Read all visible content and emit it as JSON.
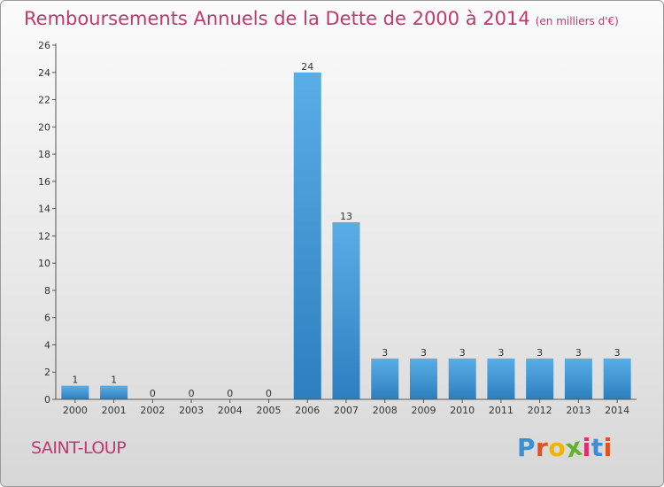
{
  "title": "Remboursements Annuels de la Dette de 2000 à 2014",
  "unit": "(en milliers d'€)",
  "commune": "SAINT-LOUP",
  "logo_text": "Proxiti",
  "colors": {
    "title": "#c2386b",
    "bar_top": "#5aaee6",
    "bar_bottom": "#2c7fbf",
    "logo": [
      "#3b8fd6",
      "#e0531f",
      "#f0b400",
      "#62b22f",
      "#d6336c",
      "#3b8fd6",
      "#e0531f"
    ]
  },
  "chart_data": {
    "type": "bar",
    "categories": [
      "2000",
      "2001",
      "2002",
      "2003",
      "2004",
      "2005",
      "2006",
      "2007",
      "2008",
      "2009",
      "2010",
      "2011",
      "2012",
      "2013",
      "2014"
    ],
    "values": [
      1,
      1,
      0,
      0,
      0,
      0,
      24,
      13,
      3,
      3,
      3,
      3,
      3,
      3,
      3
    ],
    "ylim": [
      0,
      26
    ],
    "yticks": [
      0,
      2,
      4,
      6,
      8,
      10,
      12,
      14,
      16,
      18,
      20,
      22,
      24,
      26
    ],
    "grid": false
  }
}
